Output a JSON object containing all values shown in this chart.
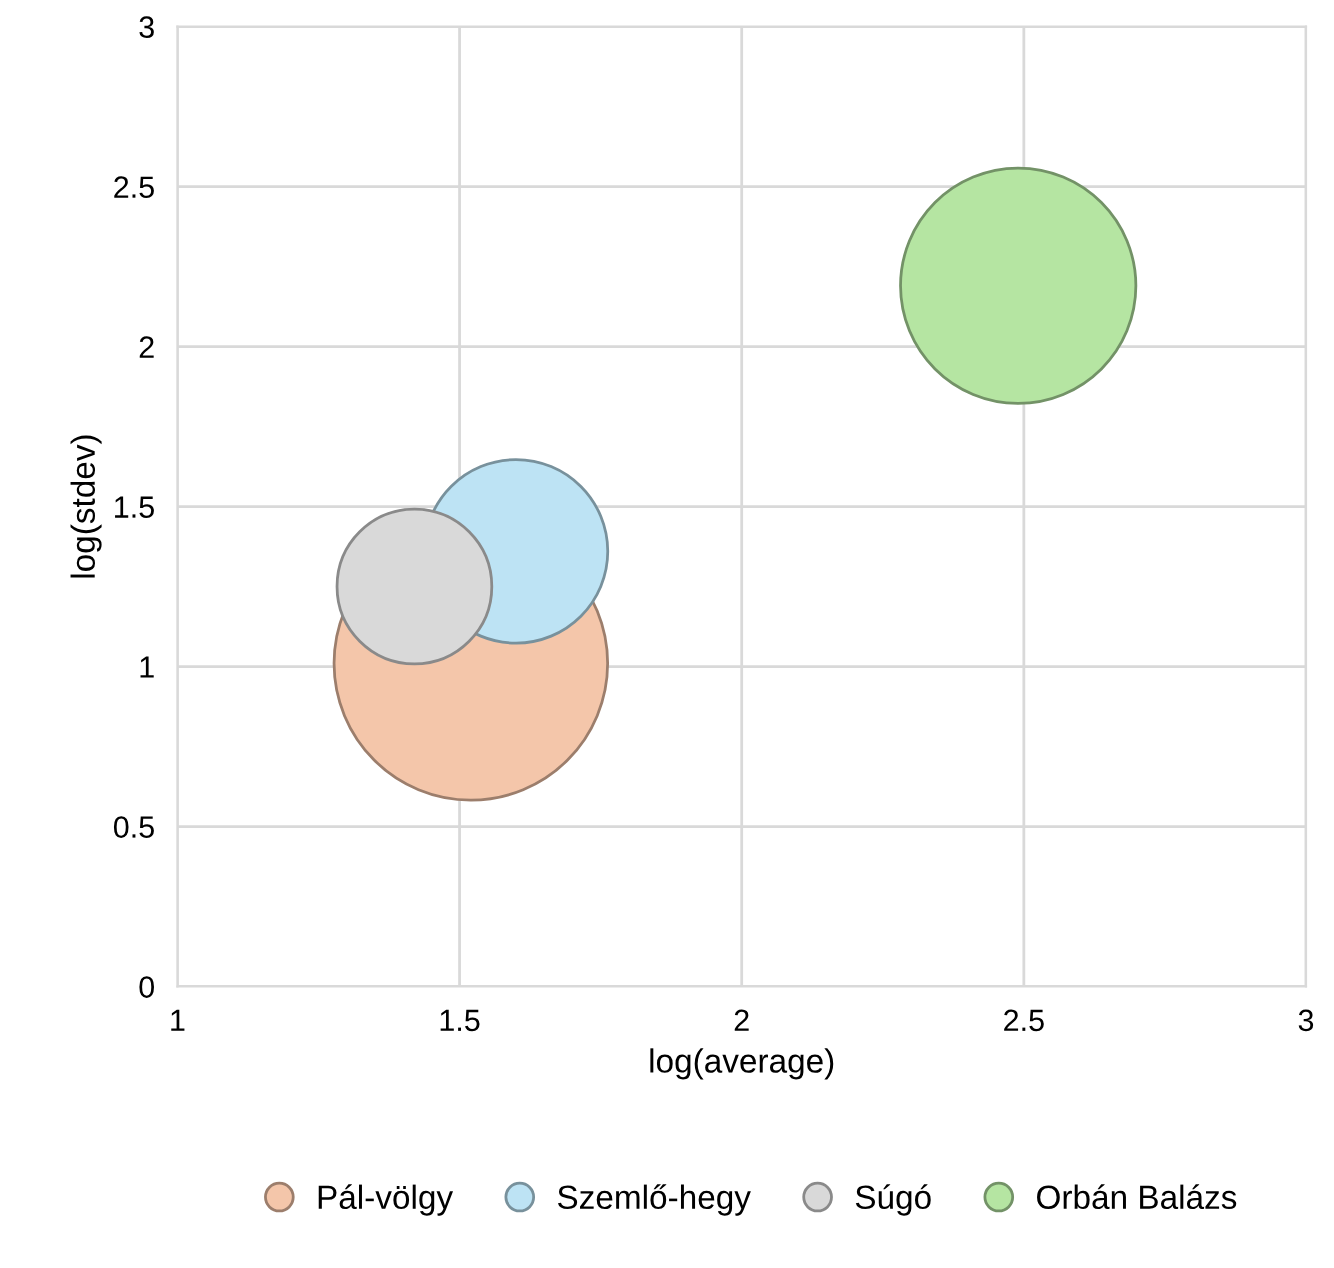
{
  "chart_data": {
    "type": "bubble",
    "xlabel": "log(average)",
    "ylabel": "log(stdev)",
    "xlim": [
      1,
      3
    ],
    "xticks": [
      1,
      1.5,
      2,
      2.5,
      3
    ],
    "ylim": [
      0,
      3
    ],
    "yticks": [
      0,
      0.5,
      1,
      1.5,
      2,
      2.5,
      3
    ],
    "grid": true,
    "legend": "bottom",
    "series": [
      {
        "name": "Pál-völgy",
        "color": "#f4c6aa",
        "x": [
          1.52
        ],
        "values": [
          1.01
        ],
        "sizes": [
          1
        ]
      },
      {
        "name": "Szemlő-hegy",
        "color": "#bde3f4",
        "x": [
          1.6
        ],
        "values": [
          1.36
        ],
        "sizes": [
          0.45
        ]
      },
      {
        "name": "Súgó",
        "color": "#d9d9d9",
        "x": [
          1.42
        ],
        "values": [
          1.25
        ],
        "sizes": [
          0.32
        ]
      },
      {
        "name": "Orbán Balázs",
        "color": "#b5e5a2",
        "x": [
          2.49
        ],
        "values": [
          2.19
        ],
        "sizes": [
          0.74
        ]
      }
    ]
  }
}
